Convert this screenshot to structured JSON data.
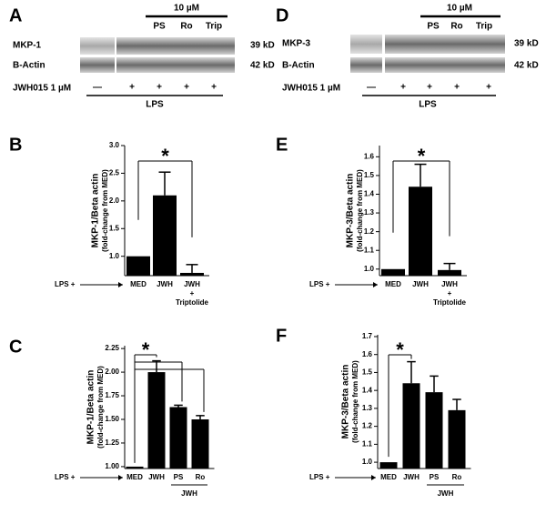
{
  "blots": [
    {
      "panel": "A",
      "treatment_header": "10 µM",
      "treatments": [
        "PS",
        "Ro",
        "Trip"
      ],
      "rows": [
        {
          "label": "MKP-1",
          "size": "39 kD"
        },
        {
          "label": "B-Actin",
          "size": "42 kD"
        }
      ],
      "stim_label": "JWH015 1 µM",
      "stim_signs": [
        "—",
        "+",
        "+",
        "+",
        "+"
      ],
      "footer": "LPS"
    },
    {
      "panel": "D",
      "treatment_header": "10 µM",
      "treatments": [
        "PS",
        "Ro",
        "Trip"
      ],
      "rows": [
        {
          "label": "MKP-3",
          "size": "39 kD"
        },
        {
          "label": "B-Actin",
          "size": "42 kD"
        }
      ],
      "stim_label": "JWH015 1 µM",
      "stim_signs": [
        "—",
        "+",
        "+",
        "+",
        "+"
      ],
      "footer": "LPS"
    }
  ],
  "chart_data": [
    {
      "type": "bar",
      "panel": "B",
      "ylabel": "MKP-1/Beta actin",
      "ylabel_sub": "(fold-change from MED)",
      "x_prefix": "LPS +",
      "categories": [
        "MED",
        "JWH",
        "JWH"
      ],
      "treatment_note": [
        "+",
        "Triptolide"
      ],
      "values": [
        1.0,
        2.1,
        0.7
      ],
      "errors": [
        null,
        0.42,
        0.15
      ],
      "color": "#000000",
      "ylim": [
        0.65,
        3.0
      ],
      "yticks": [
        {
          "value": 1.0,
          "label": "1.0"
        },
        {
          "value": 1.5,
          "label": "1.5"
        },
        {
          "value": 2.0,
          "label": "2.0"
        },
        {
          "value": 2.5,
          "label": "2.5"
        },
        {
          "value": 3.0,
          "label": "3.0"
        }
      ],
      "significance_label": "*"
    },
    {
      "type": "bar",
      "panel": "E",
      "ylabel": "MKP-3/Beta actin",
      "ylabel_sub": "(fold-change from MED)",
      "x_prefix": "LPS +",
      "categories": [
        "MED",
        "JWH",
        "JWH"
      ],
      "treatment_note": [
        "+",
        "Triptolide"
      ],
      "values": [
        1.0,
        1.44,
        0.995
      ],
      "errors": [
        null,
        0.12,
        0.035
      ],
      "color": "#000000",
      "ylim": [
        0.965,
        1.66
      ],
      "yticks": [
        {
          "value": 1.0,
          "label": "1.0"
        },
        1.1,
        1.2,
        1.3,
        1.4,
        1.5,
        1.6
      ],
      "significance_label": "*"
    },
    {
      "type": "bar",
      "panel": "C",
      "ylabel": "MKP-1/Beta actin",
      "ylabel_sub": "(fold-change from MED)",
      "x_prefix": "LPS +",
      "categories": [
        "MED",
        "JWH",
        "PS",
        "Ro"
      ],
      "group_label": "JWH",
      "values": [
        1.0,
        2.0,
        1.63,
        1.5
      ],
      "errors": [
        null,
        0.12,
        0.02,
        0.04
      ],
      "color": "#000000",
      "ylim": [
        0.98,
        2.28
      ],
      "yticks": [
        {
          "value": 1.0,
          "label": "1.00"
        },
        1.25,
        {
          "value": 1.5,
          "label": "1.50"
        },
        1.75,
        {
          "value": 2.0,
          "label": "2.00"
        },
        2.25
      ],
      "significance_label": "*"
    },
    {
      "type": "bar",
      "panel": "F",
      "ylabel": "MKP-3/Beta actin",
      "ylabel_sub": "(fold-change from MED)",
      "x_prefix": "LPS +",
      "categories": [
        "MED",
        "JWH",
        "PS",
        "Ro"
      ],
      "group_label": "JWH",
      "values": [
        1.0,
        1.44,
        1.39,
        1.29
      ],
      "errors": [
        null,
        0.12,
        0.09,
        0.06
      ],
      "color": "#000000",
      "ylim": [
        0.965,
        1.71
      ],
      "yticks": [
        {
          "value": 1.0,
          "label": "1.0"
        },
        1.1,
        1.2,
        1.3,
        1.4,
        1.5,
        1.6,
        1.7
      ],
      "significance_label": "*"
    }
  ]
}
